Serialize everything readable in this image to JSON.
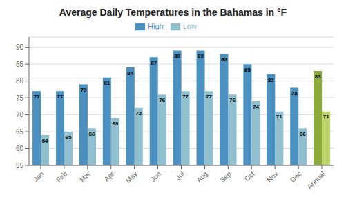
{
  "chart_data": {
    "type": "bar",
    "title": "Average Daily Temperatures in the Bahamas in °F",
    "categories": [
      "Jan",
      "Feb",
      "Mar",
      "Apr",
      "May",
      "Jun",
      "Jul",
      "Aug",
      "Sep",
      "Oct",
      "Nov",
      "Dec",
      "Annual"
    ],
    "series": [
      {
        "name": "High",
        "color": "#4a90c0",
        "colors": [
          "#4a90c0",
          "#4a90c0",
          "#4a90c0",
          "#4a90c0",
          "#4a90c0",
          "#4a90c0",
          "#4a90c0",
          "#4a90c0",
          "#4a90c0",
          "#4a90c0",
          "#4a90c0",
          "#4a90c0",
          "#8aaa3a"
        ],
        "values": [
          77,
          77,
          79,
          81,
          84,
          87,
          89,
          89,
          88,
          85,
          82,
          78,
          83
        ]
      },
      {
        "name": "Low",
        "color": "#90c0d0",
        "colors": [
          "#90c0d0",
          "#90c0d0",
          "#90c0d0",
          "#90c0d0",
          "#90c0d0",
          "#90c0d0",
          "#90c0d0",
          "#90c0d0",
          "#90c0d0",
          "#90c0d0",
          "#90c0d0",
          "#90c0d0",
          "#bcd468"
        ],
        "values": [
          64,
          65,
          66,
          69,
          72,
          76,
          77,
          77,
          76,
          74,
          71,
          66,
          71
        ]
      }
    ],
    "ylim": [
      55,
      93
    ],
    "yticks": [
      55,
      60,
      65,
      70,
      75,
      80,
      85,
      90
    ],
    "grid": true,
    "legend": "top",
    "data_labels": true
  }
}
